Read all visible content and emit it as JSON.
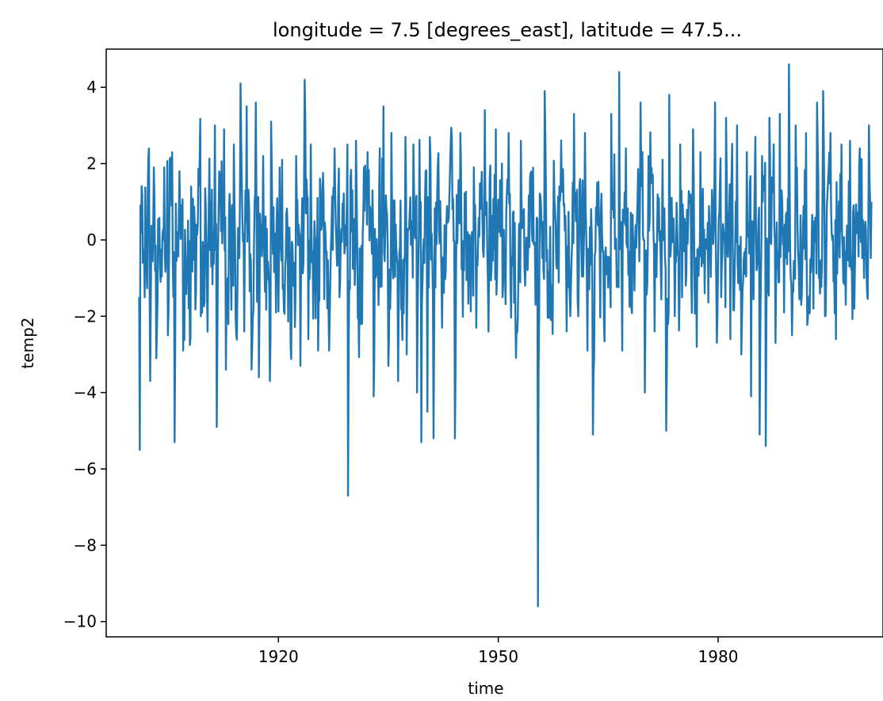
{
  "chart_data": {
    "type": "line",
    "title": "longitude = 7.5 [degrees_east], latitude = 47.5...",
    "xlabel": "time",
    "ylabel": "temp2",
    "xlim": [
      1896.5,
      2002.5
    ],
    "ylim": [
      -10.4,
      5.0
    ],
    "x_ticks": [
      {
        "value": 1920,
        "label": "1920"
      },
      {
        "value": 1950,
        "label": "1950"
      },
      {
        "value": 1980,
        "label": "1980"
      }
    ],
    "y_ticks": [
      {
        "value": 4,
        "label": "4"
      },
      {
        "value": 2,
        "label": "2"
      },
      {
        "value": 0,
        "label": "0"
      },
      {
        "value": -2,
        "label": "−2"
      },
      {
        "value": -4,
        "label": "−4"
      },
      {
        "value": -6,
        "label": "−6"
      },
      {
        "value": -8,
        "label": "−8"
      },
      {
        "value": -10,
        "label": "−10"
      }
    ],
    "grid": false,
    "color": "#1f77b4",
    "series": [
      {
        "x_start": 1901.0,
        "x_end": 2000.92,
        "x_step_months": 1,
        "anchors": [
          [
            1901.0,
            -1.5
          ],
          [
            1901.05,
            -5.5
          ],
          [
            1901.15,
            0.9
          ],
          [
            1901.5,
            -0.6
          ],
          [
            1902.3,
            2.4
          ],
          [
            1902.5,
            -3.7
          ],
          [
            1903.0,
            1.9
          ],
          [
            1903.3,
            -3.1
          ],
          [
            1904.4,
            1.9
          ],
          [
            1904.9,
            -2.5
          ],
          [
            1905.2,
            2.1
          ],
          [
            1905.8,
            -5.3
          ],
          [
            1906.5,
            1.8
          ],
          [
            1907.0,
            -2.9
          ],
          [
            1908.1,
            1.4
          ],
          [
            1909.4,
            -2.0
          ],
          [
            1911.3,
            3.0
          ],
          [
            1911.6,
            -4.9
          ],
          [
            1912.6,
            2.9
          ],
          [
            1912.8,
            -3.4
          ],
          [
            1913.9,
            2.5
          ],
          [
            1914.8,
            4.1
          ],
          [
            1915.3,
            -2.4
          ],
          [
            1915.7,
            3.5
          ],
          [
            1916.3,
            -3.4
          ],
          [
            1916.9,
            3.6
          ],
          [
            1917.3,
            -3.6
          ],
          [
            1917.9,
            2.2
          ],
          [
            1918.8,
            -3.7
          ],
          [
            1919.0,
            3.1
          ],
          [
            1919.7,
            -1.9
          ],
          [
            1920.5,
            2.1
          ],
          [
            1921.7,
            -2.8
          ],
          [
            1922.4,
            2.2
          ],
          [
            1923.0,
            -3.3
          ],
          [
            1923.6,
            4.2
          ],
          [
            1924.1,
            -2.6
          ],
          [
            1924.4,
            2.5
          ],
          [
            1925.4,
            -2.9
          ],
          [
            1926.2,
            1.1
          ],
          [
            1926.9,
            -2.9
          ],
          [
            1927.7,
            2.4
          ],
          [
            1928.3,
            -1.5
          ],
          [
            1929.4,
            2.5
          ],
          [
            1929.5,
            -6.7
          ],
          [
            1929.8,
            1.6
          ],
          [
            1930.6,
            2.6
          ],
          [
            1931.4,
            -2.2
          ],
          [
            1932.2,
            2.3
          ],
          [
            1933.0,
            -4.1
          ],
          [
            1933.8,
            2.4
          ],
          [
            1934.3,
            3.5
          ],
          [
            1935.0,
            -3.3
          ],
          [
            1935.4,
            2.8
          ],
          [
            1936.3,
            -3.7
          ],
          [
            1937.3,
            2.7
          ],
          [
            1937.5,
            -3.0
          ],
          [
            1938.4,
            2.5
          ],
          [
            1938.9,
            -4.0
          ],
          [
            1939.5,
            -5.3
          ],
          [
            1940.1,
            1.8
          ],
          [
            1940.3,
            -4.5
          ],
          [
            1940.7,
            2.7
          ],
          [
            1941.2,
            -5.2
          ],
          [
            1941.7,
            1.2
          ],
          [
            1942.3,
            -2.3
          ],
          [
            1943.4,
            1.8
          ],
          [
            1944.1,
            -5.2
          ],
          [
            1944.8,
            2.8
          ],
          [
            1945.3,
            -0.8
          ],
          [
            1946.7,
            1.9
          ],
          [
            1947.0,
            -2.3
          ],
          [
            1948.2,
            3.4
          ],
          [
            1948.7,
            -2.4
          ],
          [
            1949.7,
            2.9
          ],
          [
            1950.6,
            -1.5
          ],
          [
            1951.4,
            2.8
          ],
          [
            1952.3,
            -1.9
          ],
          [
            1953.1,
            2.6
          ],
          [
            1953.7,
            -1.2
          ],
          [
            1954.3,
            1.6
          ],
          [
            1955.1,
            -1.7
          ],
          [
            1955.4,
            -9.6
          ],
          [
            1955.8,
            0.9
          ],
          [
            1956.3,
            3.9
          ],
          [
            1957.2,
            -2.1
          ],
          [
            1958.3,
            1.4
          ],
          [
            1959.3,
            -2.4
          ],
          [
            1960.3,
            3.3
          ],
          [
            1960.9,
            -2.0
          ],
          [
            1961.8,
            2.8
          ],
          [
            1962.2,
            -2.9
          ],
          [
            1962.9,
            -5.1
          ],
          [
            1963.5,
            1.5
          ],
          [
            1964.4,
            -2.1
          ],
          [
            1965.4,
            3.3
          ],
          [
            1966.5,
            4.4
          ],
          [
            1966.9,
            -2.9
          ],
          [
            1967.4,
            2.4
          ],
          [
            1968.2,
            -1.8
          ],
          [
            1969.4,
            3.6
          ],
          [
            1970.0,
            -4.0
          ],
          [
            1970.5,
            2.2
          ],
          [
            1971.3,
            -2.4
          ],
          [
            1972.4,
            2.1
          ],
          [
            1972.9,
            -5.0
          ],
          [
            1973.3,
            3.8
          ],
          [
            1974.1,
            -2.0
          ],
          [
            1974.8,
            2.5
          ],
          [
            1975.6,
            -1.2
          ],
          [
            1976.6,
            2.9
          ],
          [
            1977.1,
            -2.8
          ],
          [
            1977.6,
            2.3
          ],
          [
            1978.2,
            -1.4
          ],
          [
            1979.6,
            3.6
          ],
          [
            1980.4,
            -1.5
          ],
          [
            1981.1,
            3.2
          ],
          [
            1981.7,
            -2.6
          ],
          [
            1982.6,
            3.0
          ],
          [
            1983.2,
            -3.0
          ],
          [
            1983.9,
            2.3
          ],
          [
            1984.5,
            -4.1
          ],
          [
            1985.1,
            2.7
          ],
          [
            1985.7,
            -5.1
          ],
          [
            1986.0,
            2.2
          ],
          [
            1986.5,
            -5.4
          ],
          [
            1987.0,
            3.2
          ],
          [
            1987.8,
            -2.7
          ],
          [
            1988.4,
            3.3
          ],
          [
            1989.0,
            -1.9
          ],
          [
            1989.7,
            4.6
          ],
          [
            1990.1,
            -2.5
          ],
          [
            1990.6,
            3.0
          ],
          [
            1991.3,
            -1.7
          ],
          [
            1992.0,
            2.8
          ],
          [
            1993.0,
            -1.8
          ],
          [
            1993.5,
            3.6
          ],
          [
            1994.3,
            3.9
          ],
          [
            1994.6,
            -2.0
          ],
          [
            1995.3,
            2.8
          ],
          [
            1996.1,
            -2.6
          ],
          [
            1996.8,
            2.5
          ],
          [
            1997.4,
            -1.7
          ],
          [
            1998.0,
            2.6
          ],
          [
            1998.6,
            -1.8
          ],
          [
            1999.3,
            2.4
          ],
          [
            1999.9,
            -1.0
          ],
          [
            2000.3,
            -1.4
          ],
          [
            2000.6,
            3.0
          ],
          [
            2000.92,
            1.0
          ]
        ],
        "baseline": 0.0,
        "noise_amplitude": 1.5,
        "noise_seed": 7
      }
    ]
  }
}
